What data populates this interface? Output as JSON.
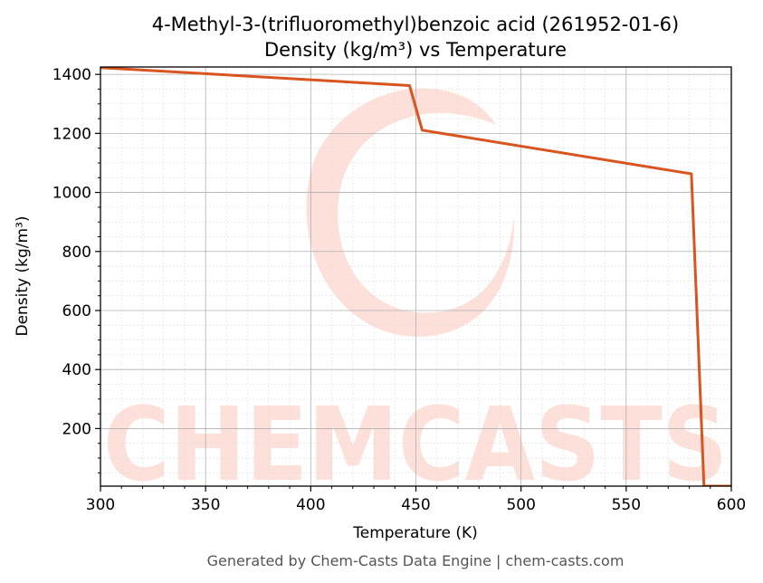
{
  "chart_data": {
    "type": "line",
    "title": "4-Methyl-3-(trifluoromethyl)benzoic acid (261952-01-6)",
    "subtitle": "Density (kg/m³) vs Temperature",
    "xlabel": "Temperature (K)",
    "ylabel": "Density (kg/m³)",
    "xlim": [
      300,
      600
    ],
    "ylim": [
      5,
      1425
    ],
    "xticks": [
      300,
      350,
      400,
      450,
      500,
      550,
      600
    ],
    "yticks": [
      200,
      400,
      600,
      800,
      1000,
      1200,
      1400
    ],
    "grid": true,
    "series": [
      {
        "color": "#d9541e",
        "x": [
          300,
          447,
          453,
          581,
          587,
          600
        ],
        "y": [
          1423,
          1362,
          1211,
          1063,
          5,
          5
        ]
      }
    ]
  },
  "watermark": {
    "text": "CHEMCASTS"
  },
  "footer": "Generated by Chem-Casts Data Engine | chem-casts.com"
}
